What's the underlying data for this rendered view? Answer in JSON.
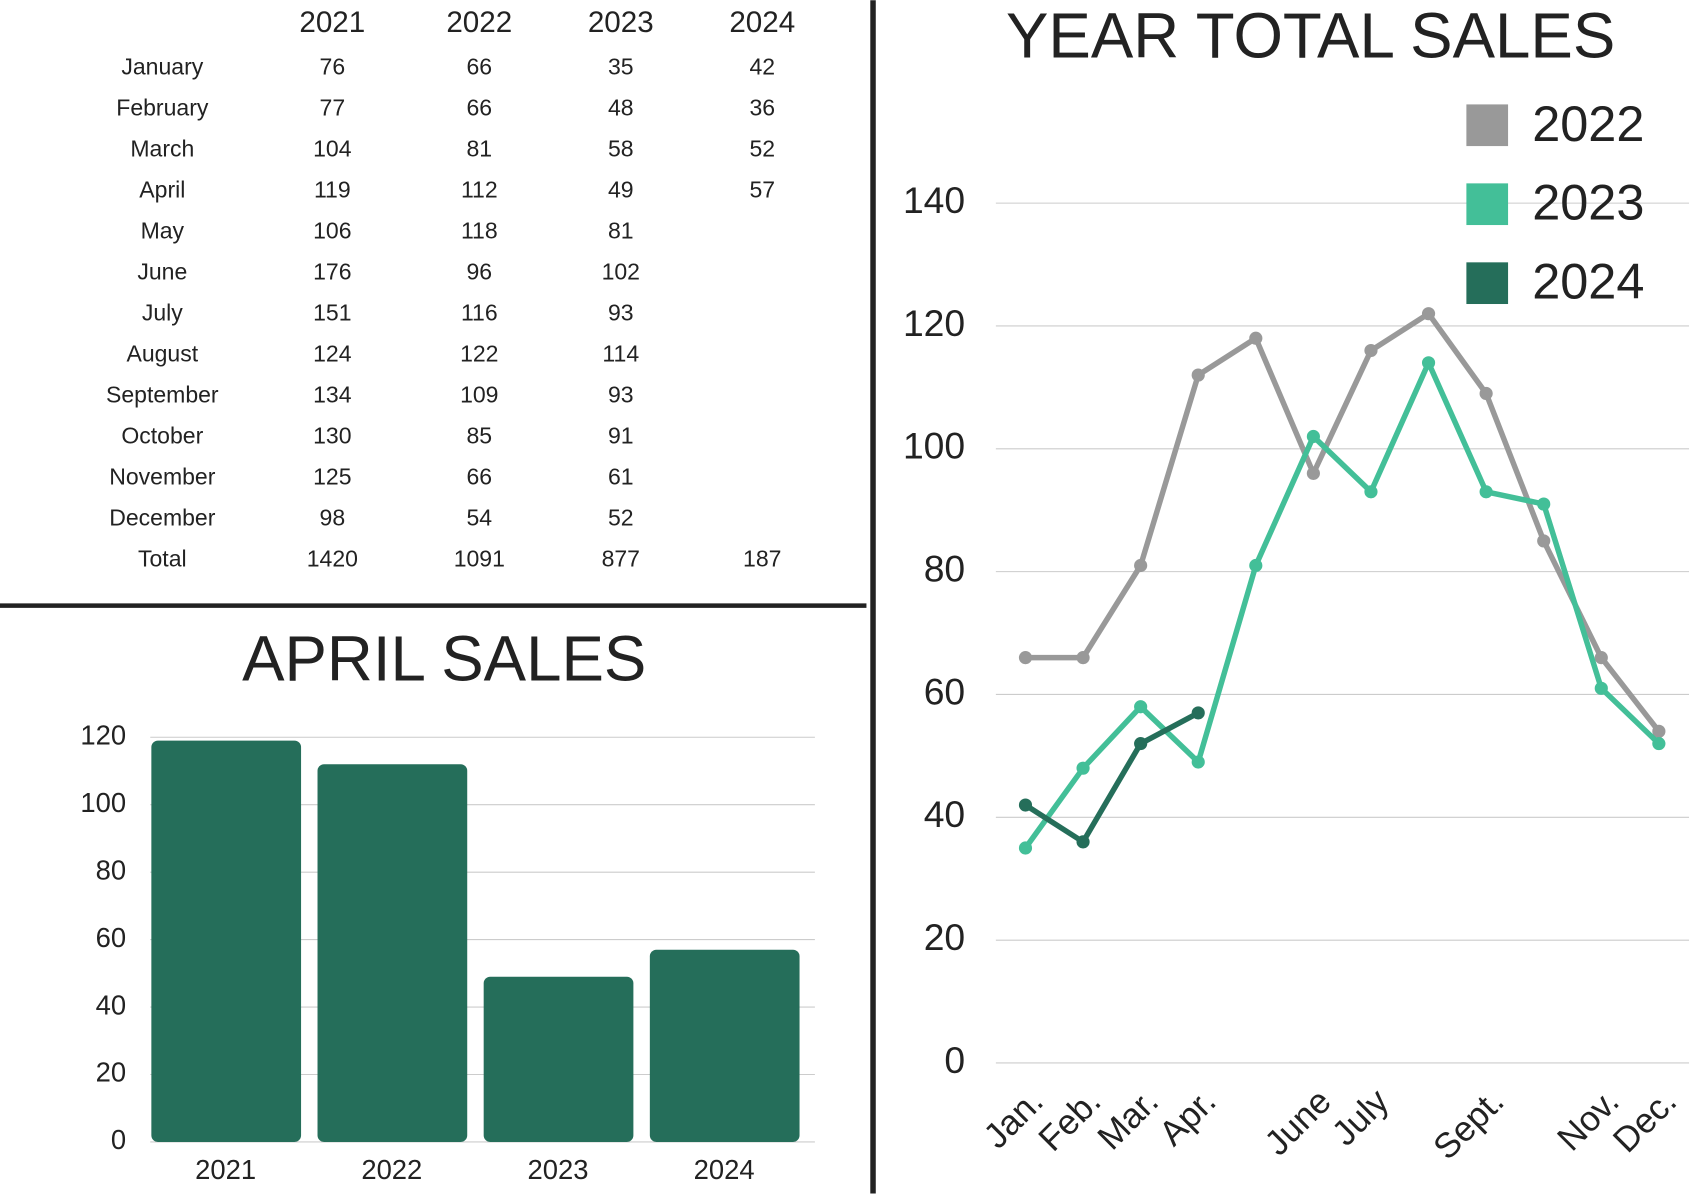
{
  "table": {
    "columns": [
      "2021",
      "2022",
      "2023",
      "2024"
    ],
    "rows": [
      [
        "January",
        76,
        66,
        35,
        42
      ],
      [
        "February",
        77,
        66,
        48,
        36
      ],
      [
        "March",
        104,
        81,
        58,
        52
      ],
      [
        "April",
        119,
        112,
        49,
        57
      ],
      [
        "May",
        106,
        118,
        81
      ],
      [
        "June",
        176,
        96,
        102
      ],
      [
        "July",
        151,
        116,
        93
      ],
      [
        "August",
        124,
        122,
        114
      ],
      [
        "September",
        134,
        109,
        93
      ],
      [
        "October",
        130,
        85,
        91
      ],
      [
        "November",
        125,
        66,
        61
      ],
      [
        "December",
        98,
        54,
        52
      ],
      [
        "Total",
        1420,
        1091,
        877,
        187
      ]
    ]
  },
  "chart_data": [
    {
      "type": "bar",
      "title": "APRIL SALES",
      "categories": [
        "2021",
        "2022",
        "2023",
        "2024"
      ],
      "values": [
        119,
        112,
        49,
        57
      ],
      "color": "#256e5a",
      "ylim": [
        0,
        120
      ],
      "yticks": [
        0,
        20,
        40,
        60,
        80,
        100,
        120
      ],
      "grid": true
    },
    {
      "type": "line",
      "title": "YEAR TOTAL SALES",
      "categories": [
        "Jan.",
        "Feb.",
        "Mar.",
        "Apr.",
        null,
        "June",
        "July",
        null,
        "Sept.",
        null,
        "Nov.",
        "Dec."
      ],
      "series": [
        {
          "name": "2022",
          "color": "#999999",
          "values": [
            66,
            66,
            81,
            112,
            118,
            96,
            116,
            122,
            109,
            85,
            66,
            54
          ]
        },
        {
          "name": "2023",
          "color": "#43bf98",
          "values": [
            35,
            48,
            58,
            49,
            81,
            102,
            93,
            114,
            93,
            91,
            61,
            52
          ]
        },
        {
          "name": "2024",
          "color": "#256e5a",
          "values": [
            42,
            36,
            52,
            57,
            null,
            null,
            null,
            null,
            null,
            null,
            null,
            null
          ]
        }
      ],
      "ylim": [
        0,
        140
      ],
      "yticks": [
        0,
        20,
        40,
        60,
        80,
        100,
        120,
        140
      ],
      "grid": true,
      "legend": "top-right"
    }
  ]
}
